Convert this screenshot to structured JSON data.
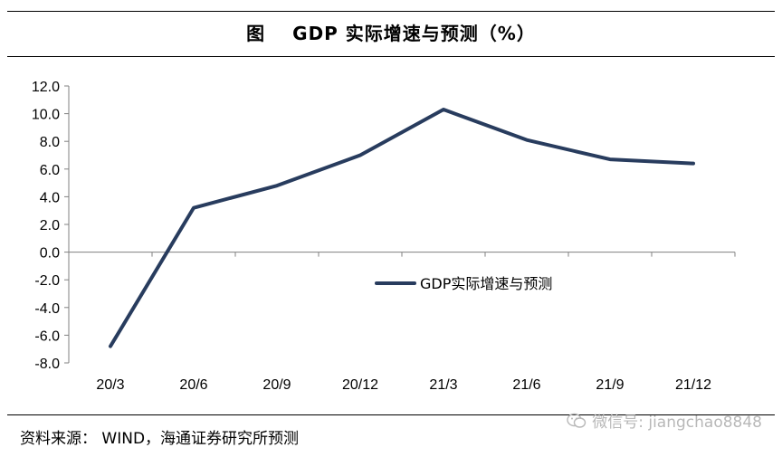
{
  "title": {
    "figure_label": "图",
    "text": "GDP 实际增速与预测（%）"
  },
  "source": "资料来源：  WIND，海通证券研究所预测",
  "watermark": {
    "icon": "wechat-icon",
    "text": "微信号: jiangchao8848"
  },
  "colors": {
    "line": "#283c5e",
    "axis": "#808080",
    "rule": "#000000"
  },
  "chart_data": {
    "type": "line",
    "categories": [
      "20/3",
      "20/6",
      "20/9",
      "20/12",
      "21/3",
      "21/6",
      "21/9",
      "21/12"
    ],
    "series": [
      {
        "name": "GDP实际增速与预测",
        "values": [
          -6.8,
          3.2,
          4.8,
          7.0,
          10.3,
          8.1,
          6.7,
          6.4
        ]
      }
    ],
    "ylim": [
      -8.0,
      12.0
    ],
    "yticks": [
      "12.0",
      "10.0",
      "8.0",
      "6.0",
      "4.0",
      "2.0",
      "0.0",
      "-2.0",
      "-4.0",
      "-6.0",
      "-8.0"
    ],
    "xlabel": "",
    "ylabel": "",
    "grid": false,
    "legend": "center-right"
  }
}
